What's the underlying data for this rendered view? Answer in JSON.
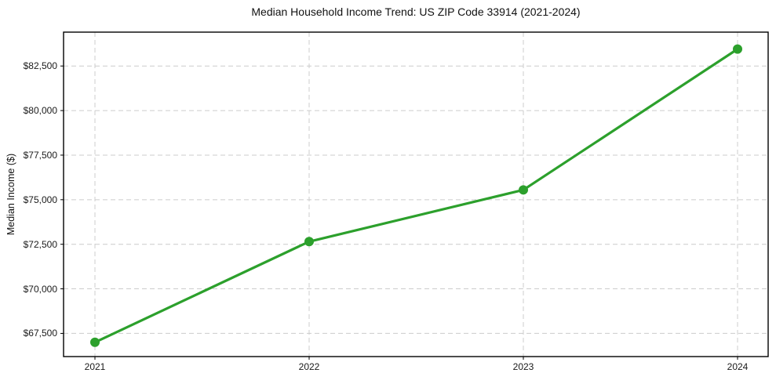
{
  "chart_data": {
    "type": "line",
    "title": "Median Household Income Trend: US ZIP Code 33914 (2021-2024)",
    "xlabel": "",
    "ylabel": "Median Income ($)",
    "x": [
      2021,
      2022,
      2023,
      2024
    ],
    "xtick_labels": [
      "2021",
      "2022",
      "2023",
      "2024"
    ],
    "series": [
      {
        "name": "Median Household Income",
        "values": [
          67000,
          72650,
          75550,
          83450
        ]
      }
    ],
    "yticks": [
      67500,
      70000,
      72500,
      75000,
      77500,
      80000,
      82500
    ],
    "ytick_labels": [
      "$67,500",
      "$70,000",
      "$72,500",
      "$75,000",
      "$77,500",
      "$80,000",
      "$82,500"
    ],
    "ylim": [
      66200,
      84400
    ],
    "grid": true,
    "grid_style": "dashed",
    "legend_position": "none",
    "colors": {
      "line": "#2ca02c",
      "marker": "#2ca02c",
      "grid": "#cccccc",
      "text": "#1a1a1a",
      "spine": "#000000",
      "background": "#ffffff"
    }
  }
}
